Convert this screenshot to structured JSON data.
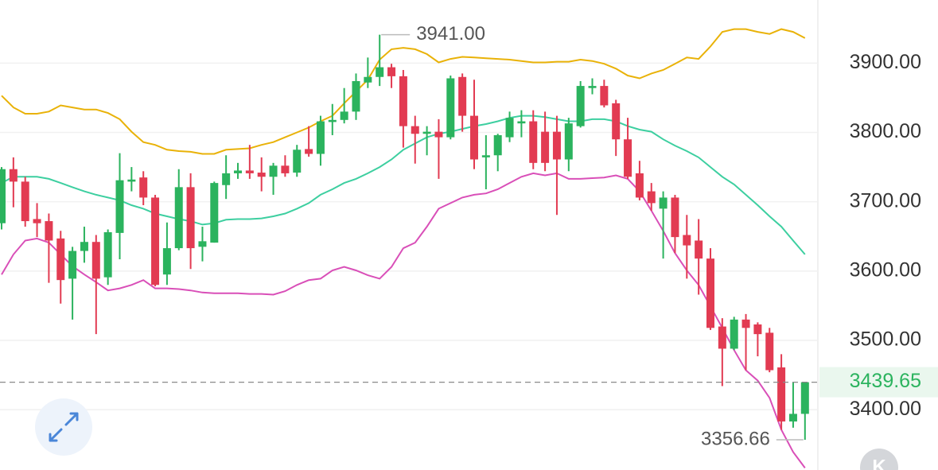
{
  "chart_data": {
    "type": "candlestick",
    "ylim": [
      3313,
      3991
    ],
    "yticks": [
      {
        "value": 3400,
        "label": "3400.00"
      },
      {
        "value": 3500,
        "label": "3500.00"
      },
      {
        "value": 3600,
        "label": "3600.00"
      },
      {
        "value": 3700,
        "label": "3700.00"
      },
      {
        "value": 3800,
        "label": "3800.00"
      },
      {
        "value": 3900,
        "label": "3900.00"
      }
    ],
    "grid": true,
    "up_color": "#2bb35e",
    "down_color": "#e23b52",
    "candles": {
      "open": [
        3669,
        3747,
        3729,
        3675,
        3672,
        3647,
        3589,
        3629,
        3642,
        3591,
        3655,
        3729,
        3735,
        3706,
        3595,
        3633,
        3721,
        3635,
        3641,
        3724,
        3741,
        3745,
        3742,
        3736,
        3752,
        3742,
        3776,
        3769,
        3815,
        3818,
        3830,
        3872,
        3880,
        3894,
        3881,
        3809,
        3798,
        3801,
        3793,
        3880,
        3824,
        3764,
        3767,
        3793,
        3813,
        3816,
        3801,
        3801,
        3761,
        3809,
        3864,
        3867,
        3842,
        3790,
        3741,
        3715,
        3690,
        3706,
        3652,
        3644,
        3618,
        3520,
        3488,
        3530,
        3523,
        3511,
        3461,
        3383,
        3394
      ],
      "high": [
        3750,
        3764,
        3736,
        3698,
        3683,
        3658,
        3635,
        3664,
        3652,
        3660,
        3770,
        3750,
        3744,
        3710,
        3670,
        3747,
        3741,
        3664,
        3729,
        3767,
        3756,
        3782,
        3764,
        3756,
        3767,
        3782,
        3809,
        3824,
        3841,
        3864,
        3885,
        3908,
        3941,
        3899,
        3890,
        3824,
        3809,
        3819,
        3882,
        3885,
        3876,
        3796,
        3798,
        3830,
        3832,
        3832,
        3830,
        3824,
        3821,
        3874,
        3878,
        3876,
        3847,
        3821,
        3759,
        3727,
        3715,
        3710,
        3681,
        3675,
        3633,
        3532,
        3534,
        3538,
        3526,
        3518,
        3480,
        3440,
        3440
      ],
      "low": [
        3660,
        3692,
        3664,
        3649,
        3583,
        3553,
        3530,
        3612,
        3509,
        3580,
        3617,
        3715,
        3695,
        3578,
        3580,
        3630,
        3603,
        3614,
        3641,
        3704,
        3733,
        3733,
        3715,
        3710,
        3736,
        3736,
        3765,
        3752,
        3796,
        3813,
        3818,
        3864,
        3867,
        3864,
        3778,
        3755,
        3767,
        3733,
        3790,
        3801,
        3747,
        3718,
        3744,
        3786,
        3793,
        3747,
        3744,
        3681,
        3744,
        3807,
        3855,
        3836,
        3766,
        3733,
        3702,
        3687,
        3618,
        3626,
        3589,
        3566,
        3515,
        3434,
        3486,
        3457,
        3477,
        3454,
        3371,
        3374,
        3356.66
      ],
      "close": [
        3747,
        3729,
        3672,
        3669,
        3644,
        3587,
        3629,
        3642,
        3589,
        3656,
        3731,
        3732,
        3706,
        3580,
        3633,
        3721,
        3633,
        3643,
        3727,
        3741,
        3745,
        3741,
        3736,
        3752,
        3741,
        3775,
        3769,
        3816,
        3818,
        3830,
        3874,
        3880,
        3894,
        3881,
        3809,
        3798,
        3801,
        3793,
        3878,
        3824,
        3761,
        3767,
        3796,
        3821,
        3816,
        3756,
        3756,
        3761,
        3813,
        3867,
        3867,
        3839,
        3790,
        3736,
        3706,
        3698,
        3706,
        3649,
        3637,
        3618,
        3518,
        3488,
        3530,
        3518,
        3509,
        3457,
        3383,
        3394,
        3439.65
      ]
    },
    "bands": [
      {
        "color": "#e9b208",
        "values": [
          3853,
          3836,
          3827,
          3827,
          3830,
          3839,
          3836,
          3833,
          3833,
          3828,
          3819,
          3801,
          3786,
          3782,
          3775,
          3773,
          3772,
          3769,
          3769,
          3775,
          3776,
          3777,
          3782,
          3786,
          3793,
          3800,
          3807,
          3816,
          3824,
          3842,
          3859,
          3876,
          3905,
          3920,
          3922,
          3920,
          3913,
          3901,
          3906,
          3909,
          3908,
          3907,
          3906,
          3905,
          3903,
          3901,
          3901,
          3902,
          3902,
          3905,
          3903,
          3899,
          3892,
          3882,
          3878,
          3885,
          3890,
          3899,
          3908,
          3906,
          3924,
          3945,
          3949,
          3949,
          3945,
          3942,
          3949,
          3945,
          3936
        ]
      },
      {
        "color": "#3dcfa0",
        "values": [
          3727,
          3736,
          3736,
          3736,
          3733,
          3727,
          3721,
          3715,
          3710,
          3706,
          3702,
          3695,
          3690,
          3683,
          3679,
          3675,
          3672,
          3667,
          3669,
          3674,
          3675,
          3675,
          3676,
          3679,
          3683,
          3690,
          3698,
          3710,
          3718,
          3727,
          3733,
          3741,
          3750,
          3761,
          3775,
          3784,
          3793,
          3798,
          3801,
          3805,
          3809,
          3812,
          3816,
          3821,
          3824,
          3824,
          3822,
          3819,
          3816,
          3816,
          3819,
          3819,
          3816,
          3809,
          3804,
          3801,
          3790,
          3781,
          3773,
          3764,
          3750,
          3736,
          3725,
          3710,
          3695,
          3679,
          3664,
          3644,
          3624
        ]
      },
      {
        "color": "#d94fb8",
        "values": [
          3595,
          3624,
          3644,
          3647,
          3641,
          3624,
          3607,
          3595,
          3584,
          3572,
          3575,
          3580,
          3587,
          3575,
          3575,
          3574,
          3572,
          3569,
          3568,
          3568,
          3568,
          3567,
          3567,
          3566,
          3571,
          3580,
          3587,
          3589,
          3601,
          3606,
          3601,
          3594,
          3589,
          3606,
          3633,
          3641,
          3664,
          3690,
          3698,
          3706,
          3710,
          3712,
          3718,
          3727,
          3736,
          3741,
          3738,
          3741,
          3733,
          3733,
          3734,
          3735,
          3738,
          3733,
          3715,
          3687,
          3658,
          3626,
          3601,
          3580,
          3549,
          3518,
          3486,
          3457,
          3442,
          3417,
          3371,
          3339,
          3316
        ]
      }
    ],
    "high_annotation": {
      "value": 3941,
      "label": "3941.00"
    },
    "low_annotation": {
      "value": 3356.66,
      "label": "3356.66"
    },
    "last_price": {
      "value": 3439.65,
      "label": "3439.65"
    },
    "kline_button": "K"
  }
}
